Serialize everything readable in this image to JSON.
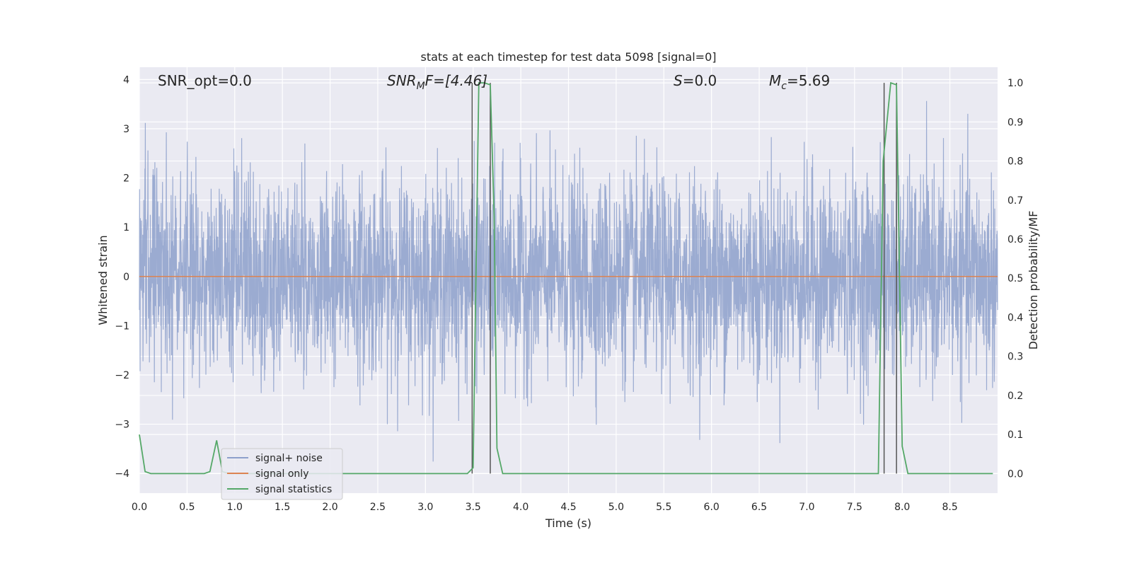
{
  "chart_data": {
    "type": "line",
    "title": "stats at each timestep for test data 5098 [signal=0]",
    "xlabel": "Time (s)",
    "ylabel": "Whitened strain",
    "ylabel_right": "Detection probability/MF",
    "xlim": [
      0,
      9.0
    ],
    "ylim": [
      -4.4,
      4.25
    ],
    "ylim_right": [
      -0.05,
      1.04
    ],
    "x_ticks": [
      0.0,
      0.5,
      1.0,
      1.5,
      2.0,
      2.5,
      3.0,
      3.5,
      4.0,
      4.5,
      5.0,
      5.5,
      6.0,
      6.5,
      7.0,
      7.5,
      8.0,
      8.5
    ],
    "x_tick_labels": [
      "0.0",
      "0.5",
      "1.0",
      "1.5",
      "2.0",
      "2.5",
      "3.0",
      "3.5",
      "4.0",
      "4.5",
      "5.0",
      "5.5",
      "6.0",
      "6.5",
      "7.0",
      "7.5",
      "8.0",
      "8.5"
    ],
    "y_ticks": [
      -4,
      -3,
      -2,
      -1,
      0,
      1,
      2,
      3,
      4
    ],
    "y_tick_labels": [
      "−4",
      "−3",
      "−2",
      "−1",
      "0",
      "1",
      "2",
      "3",
      "4"
    ],
    "y_ticks_right": [
      0.0,
      0.1,
      0.2,
      0.3,
      0.4,
      0.5,
      0.6,
      0.7,
      0.8,
      0.9,
      1.0
    ],
    "y_tick_labels_right": [
      "0.0",
      "0.1",
      "0.2",
      "0.3",
      "0.4",
      "0.5",
      "0.6",
      "0.7",
      "0.8",
      "0.9",
      "1.0"
    ],
    "grid": true,
    "legend_placement": "lower-left",
    "annotations": {
      "snr_opt": "SNR_opt=0.0",
      "snr_mf_main": "SNR",
      "snr_mf_sub": "M",
      "snr_mf_rest": "F=[4.46]",
      "s_main": "S",
      "s_rest": "=0.0",
      "mc_main": "M",
      "mc_sub": "c",
      "mc_rest": "=5.69"
    },
    "series": [
      {
        "name": "signal+ noise",
        "color": "#8da0cb",
        "axis": "left",
        "description": "whitened strain noise, roughly gaussian",
        "sample_rate": 4096,
        "envelope": {
          "core_min": -1.6,
          "core_max": 1.5,
          "peak_min": -4.0,
          "peak_max": 3.85
        }
      },
      {
        "name": "signal only",
        "color": "#dd8452",
        "axis": "left",
        "x": [
          0.0,
          9.0
        ],
        "y": [
          0.0,
          0.0
        ]
      },
      {
        "name": "signal statistics",
        "color": "#55a868",
        "axis": "right",
        "x": [
          0.0,
          0.06,
          0.12,
          0.2,
          0.4,
          0.6,
          0.68,
          0.74,
          0.81,
          0.87,
          0.94,
          1.2,
          1.6,
          2.0,
          2.5,
          3.0,
          3.38,
          3.44,
          3.5,
          3.56,
          3.62,
          3.68,
          3.72,
          3.75,
          3.81,
          4.0,
          5.0,
          6.0,
          7.0,
          7.5,
          7.75,
          7.8,
          7.88,
          7.94,
          8.0,
          8.06,
          8.5,
          8.95
        ],
        "y": [
          0.1,
          0.005,
          0.0,
          0.0,
          0.0,
          0.0,
          0.0,
          0.005,
          0.085,
          0.005,
          0.0,
          0.0,
          0.0,
          0.0,
          0.0,
          0.0,
          0.0,
          0.0,
          0.015,
          1.0,
          1.0,
          0.995,
          0.66,
          0.065,
          0.0,
          0.0,
          0.0,
          0.0,
          0.0,
          0.0,
          0.0,
          0.8,
          1.0,
          0.995,
          0.07,
          0.0,
          0.0,
          0.0
        ]
      }
    ],
    "vertical_markers": [
      3.49,
      3.68,
      7.81,
      7.94
    ],
    "marker_color": "#555555"
  }
}
